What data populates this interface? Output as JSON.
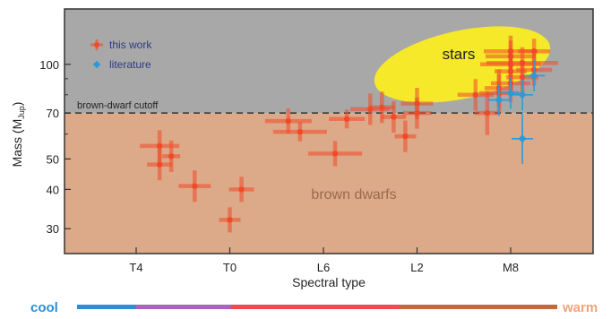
{
  "chart_data": {
    "type": "scatter",
    "title": "",
    "xlabel": "Spectral type",
    "ylabel": "Mass (M_Jup)",
    "ylabel_main": "Mass (M",
    "ylabel_sub": "Jup",
    "ylabel_close": ")",
    "y_scale": "log",
    "ylim": [
      25,
      150
    ],
    "yticks": [
      30,
      40,
      50,
      70,
      100
    ],
    "xticks": [
      "T4",
      "T0",
      "L6",
      "L2",
      "M8"
    ],
    "grid": false,
    "legend": "top-left",
    "regions": {
      "above_cutoff_color": "#a8a8a8",
      "below_cutoff_color": "#dca989",
      "cutoff_value": 70,
      "cutoff_label": "brown-dwarf cutoff",
      "brown_dwarfs_label": "brown dwarfs",
      "stars_label": "stars",
      "stars_color": "#f5e92a"
    },
    "series": [
      {
        "name": "this work",
        "color": "#f04a28",
        "points": [
          {
            "x": "T3",
            "y": 55
          },
          {
            "x": "T3",
            "y": 48
          },
          {
            "x": "T2.5",
            "y": 51
          },
          {
            "x": "T1.5",
            "y": 41
          },
          {
            "x": "T0",
            "y": 32
          },
          {
            "x": "L9.5",
            "y": 40
          },
          {
            "x": "L7.5",
            "y": 66
          },
          {
            "x": "L7",
            "y": 61
          },
          {
            "x": "L5.5",
            "y": 52
          },
          {
            "x": "L5",
            "y": 67
          },
          {
            "x": "L4",
            "y": 72
          },
          {
            "x": "L3.5",
            "y": 73
          },
          {
            "x": "L3",
            "y": 68
          },
          {
            "x": "L2.5",
            "y": 59
          },
          {
            "x": "L2",
            "y": 70
          },
          {
            "x": "L2",
            "y": 75
          },
          {
            "x": "M9.5",
            "y": 80
          },
          {
            "x": "M9",
            "y": 70
          },
          {
            "x": "M8.5",
            "y": 84
          },
          {
            "x": "M8.5",
            "y": 81
          },
          {
            "x": "M8",
            "y": 87
          },
          {
            "x": "M8",
            "y": 110
          },
          {
            "x": "M8",
            "y": 106
          },
          {
            "x": "M8",
            "y": 100
          },
          {
            "x": "M8",
            "y": 95
          },
          {
            "x": "M7.5",
            "y": 91
          },
          {
            "x": "M7.5",
            "y": 101
          },
          {
            "x": "M7",
            "y": 110
          },
          {
            "x": "M7",
            "y": 96
          }
        ]
      },
      {
        "name": "literature",
        "color": "#2a9bd8",
        "points": [
          {
            "x": "M8.5",
            "y": 77
          },
          {
            "x": "M8",
            "y": 81
          },
          {
            "x": "M7.5",
            "y": 58
          },
          {
            "x": "M7.5",
            "y": 80
          },
          {
            "x": "M7",
            "y": 92
          }
        ]
      }
    ]
  },
  "temperature_scale": {
    "cool_label": "cool",
    "warm_label": "warm",
    "cool_color": "#2a8fd8",
    "warm_color": "#f0a37a",
    "segment_colors": [
      "#2a8fd8",
      "#b060c0",
      "#f04a4a",
      "#c8683a"
    ]
  }
}
